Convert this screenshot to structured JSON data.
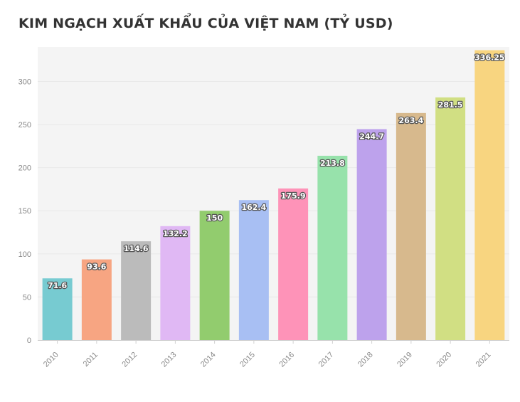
{
  "chart_data": {
    "type": "bar",
    "title": "KIM NGẠCH XUẤT KHẨU CỦA VIỆT NAM (TỶ USD)",
    "categories": [
      "2010",
      "2011",
      "2012",
      "2013",
      "2014",
      "2015",
      "2016",
      "2017",
      "2018",
      "2019",
      "2020",
      "2021"
    ],
    "values": [
      71.6,
      93.6,
      114.6,
      132.2,
      150,
      162.4,
      175.9,
      213.8,
      244.7,
      263.4,
      281.5,
      336.25
    ],
    "data_labels": [
      "71.6",
      "93.6",
      "114.6",
      "132.2",
      "150",
      "162.4",
      "175.9",
      "213.8",
      "244.7",
      "263.4",
      "281.5",
      "336.25"
    ],
    "colors": [
      "#77cbd1",
      "#f7a582",
      "#bbbbbb",
      "#e0b8f4",
      "#92cc6e",
      "#a8bff3",
      "#fe93b8",
      "#97e2ab",
      "#bda2ec",
      "#d7b98d",
      "#d1df83",
      "#f8d580"
    ],
    "yticks": [
      0,
      50,
      100,
      150,
      200,
      250,
      300
    ],
    "ylim": [
      0,
      340
    ],
    "grid": true,
    "plot_background": "#f4f4f4",
    "xlabel": "",
    "ylabel": ""
  }
}
